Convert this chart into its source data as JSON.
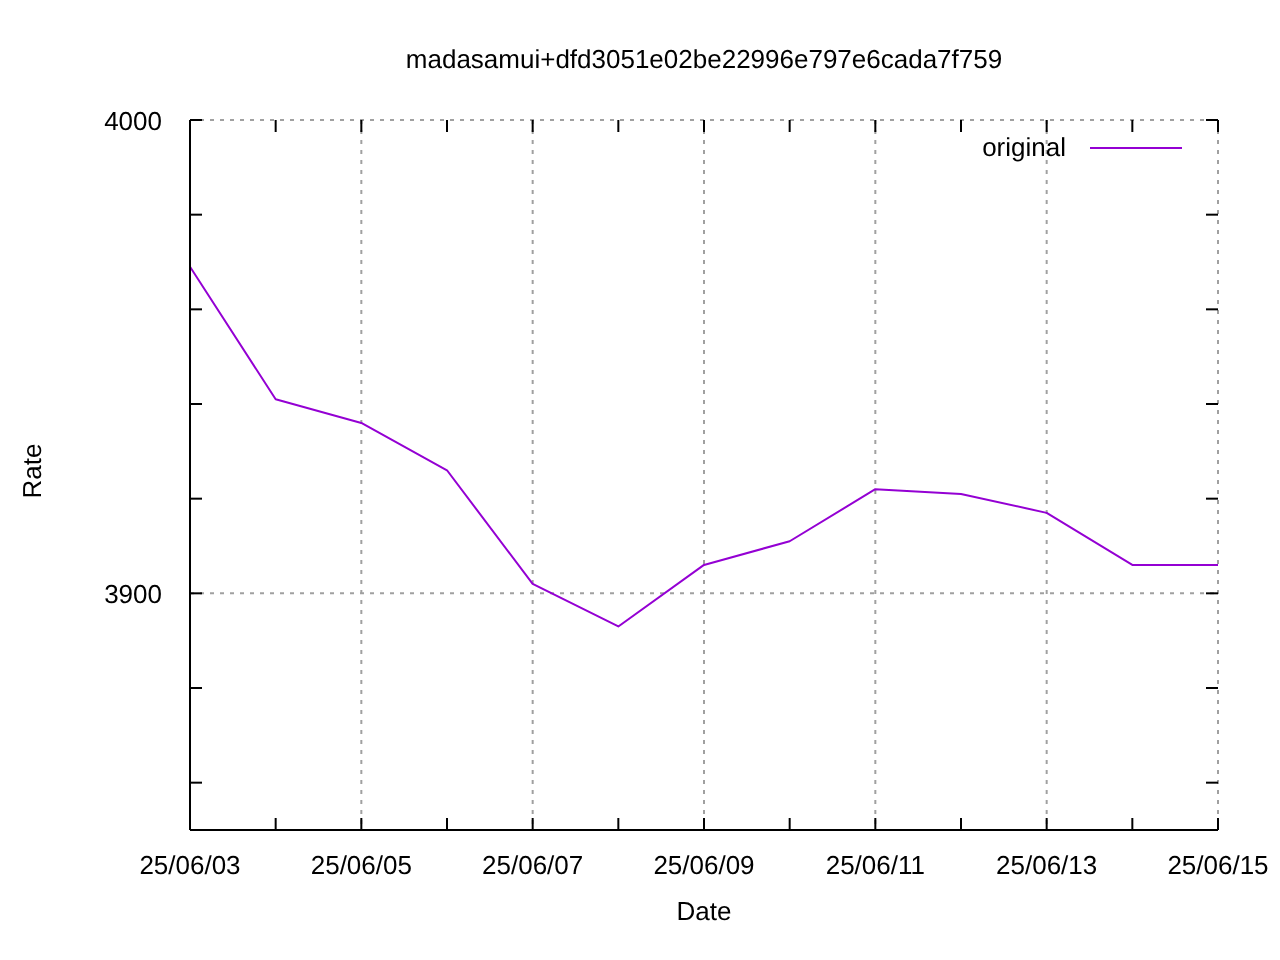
{
  "chart_data": {
    "type": "line",
    "title": "madasamui+dfd3051e02be22996e797e6cada7f759",
    "xlabel": "Date",
    "ylabel": "Rate",
    "x": [
      "--06-03",
      "--06-04",
      "--06-05",
      "--06-06",
      "--06-07",
      "--06-08",
      "--06-09",
      "--06-10",
      "--06-11",
      "--06-12",
      "--06-13",
      "--06-14",
      "--06-15"
    ],
    "series": [
      {
        "name": "original",
        "color": "#9400d3",
        "values": [
          3969,
          3941,
          3936,
          3926,
          3902,
          3893,
          3906,
          3911,
          3922,
          3921,
          3917,
          3906,
          3906
        ]
      }
    ],
    "xlim": [
      "--06-03",
      "--06-15"
    ],
    "xticks": [
      {
        "value": "--06-03",
        "label": "25/06/03"
      },
      {
        "value": "--06-04",
        "label": null
      },
      {
        "value": "--06-05",
        "label": "25/06/05"
      },
      {
        "value": "--06-06",
        "label": null
      },
      {
        "value": "--06-07",
        "label": "25/06/07"
      },
      {
        "value": "--06-08",
        "label": null
      },
      {
        "value": "--06-09",
        "label": "25/06/09"
      },
      {
        "value": "--06-10",
        "label": null
      },
      {
        "value": "--06-11",
        "label": "25/06/11"
      },
      {
        "value": "--06-12",
        "label": null
      },
      {
        "value": "--06-13",
        "label": "25/06/13"
      },
      {
        "value": "--06-14",
        "label": null
      },
      {
        "value": "--06-15",
        "label": "25/06/15"
      }
    ],
    "ylim": [
      3850,
      4000
    ],
    "yticks": [
      {
        "value": 3860,
        "label": null
      },
      {
        "value": 3880,
        "label": null
      },
      3900,
      {
        "value": 3920,
        "label": null
      },
      {
        "value": 3940,
        "label": null
      },
      {
        "value": 3960,
        "label": null
      },
      {
        "value": 3980,
        "label": null
      },
      4000
    ],
    "grid": true,
    "legend": "top right",
    "marker": "none",
    "line_style": "solid"
  }
}
